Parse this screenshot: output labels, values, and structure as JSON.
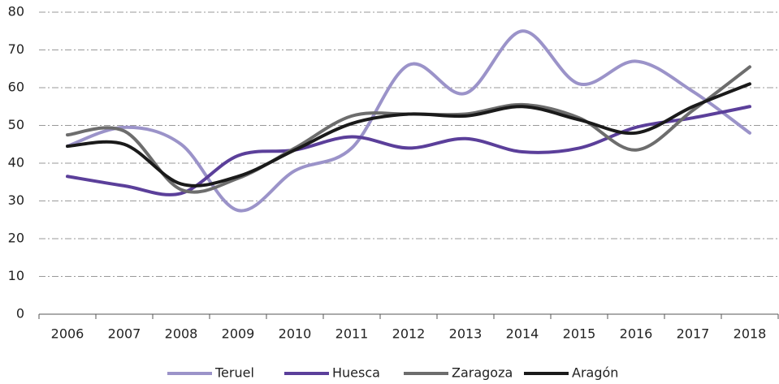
{
  "chart_data": {
    "type": "line",
    "categories": [
      "2006",
      "2007",
      "2008",
      "2009",
      "2010",
      "2011",
      "2012",
      "2013",
      "2014",
      "2015",
      "2016",
      "2017",
      "2018"
    ],
    "series": [
      {
        "name": "Teruel",
        "color": "#9b93c9",
        "values": [
          44.5,
          49.5,
          45,
          27.5,
          38,
          44,
          66,
          58.5,
          75,
          61,
          67,
          59,
          48
        ]
      },
      {
        "name": "Huesca",
        "color": "#5b3f9a",
        "values": [
          36.5,
          34,
          32,
          42,
          43.5,
          47,
          44,
          46.5,
          43,
          44,
          49.5,
          52,
          55
        ]
      },
      {
        "name": "Zaragoza",
        "color": "#6d6d6d",
        "values": [
          47.5,
          48.5,
          33,
          36,
          44,
          52.5,
          53,
          53,
          55.5,
          52,
          43.5,
          54,
          65.5
        ]
      },
      {
        "name": "Aragón",
        "color": "#1a1a1a",
        "values": [
          44.5,
          45,
          34.5,
          36.5,
          43.5,
          50.5,
          53,
          52.5,
          55,
          51.5,
          48,
          55,
          61
        ]
      }
    ],
    "ylim": [
      0,
      80
    ],
    "yticks": [
      0,
      10,
      20,
      30,
      40,
      50,
      60,
      70,
      80
    ],
    "grid": true,
    "legend": "bottom"
  }
}
